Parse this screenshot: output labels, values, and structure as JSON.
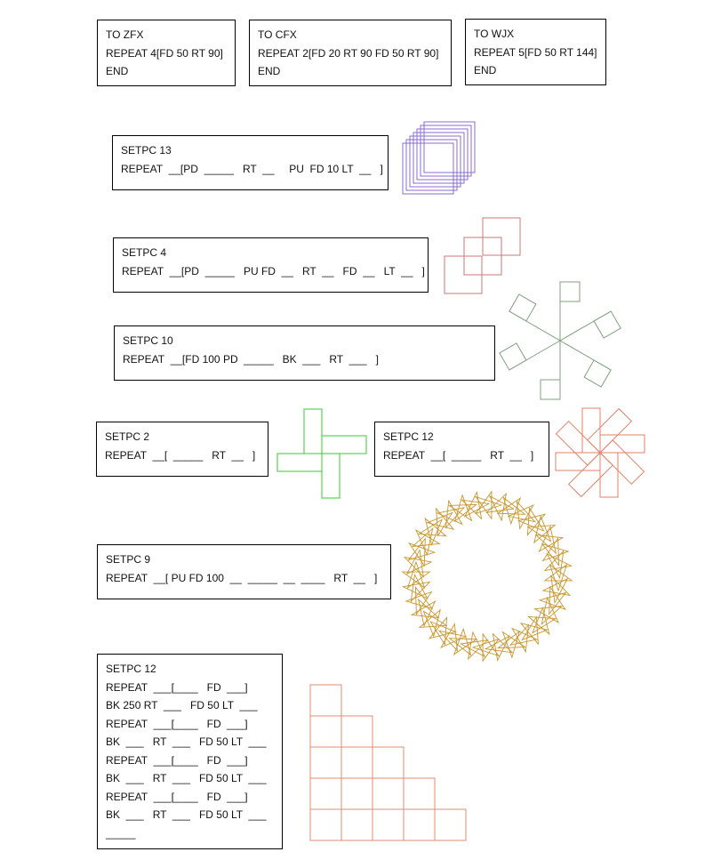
{
  "procedures": [
    {
      "lines": [
        "TO ZFX",
        "REPEAT 4[FD 50 RT 90]",
        "END"
      ]
    },
    {
      "lines": [
        "TO CFX",
        "REPEAT 2[FD 20 RT 90 FD 50 RT 90]",
        "END"
      ]
    },
    {
      "lines": [
        "TO WJX",
        "REPEAT 5[FD 50 RT 144]",
        "END"
      ]
    }
  ],
  "exercises": [
    {
      "lines": [
        "SETPC 13",
        "REPEAT  __[PD  _____   RT  __     PU  FD 10 LT  __   ]"
      ]
    },
    {
      "lines": [
        "SETPC 4",
        "REPEAT  __[PD  _____   PU FD  __   RT  __   FD  __   LT  __   ]"
      ]
    },
    {
      "lines": [
        "SETPC 10",
        "REPEAT  __[FD 100 PD  _____   BK  ___   RT  ___   ]"
      ]
    },
    {
      "lines": [
        "SETPC 2",
        "REPEAT  __[  _____   RT  __   ]"
      ]
    },
    {
      "lines": [
        "SETPC 12",
        "REPEAT  __[  _____   RT  __   ]"
      ]
    },
    {
      "lines": [
        "SETPC 9",
        "REPEAT  __[ PU FD 100  __  _____  __  ____   RT  __   ]"
      ]
    },
    {
      "lines": [
        "SETPC 12",
        "REPEAT  ___[____   FD  ___]",
        "BK 250 RT  ___   FD 50 LT  ___",
        "REPEAT  ___[____   FD  ___]",
        "BK  ___   RT  ___   FD 50 LT  ___",
        "REPEAT  ___[____   FD  ___]",
        "BK  ___   RT  ___   FD 50 LT  ___",
        "REPEAT  ___[____   FD  ___]",
        "BK  ___   RT  ___   FD 50 LT  ___",
        "_____"
      ]
    }
  ],
  "colors": {
    "purple": "#8b6cd0",
    "red": "#c87878",
    "gray_green": "#7f9f80",
    "green": "#33cc33",
    "orange_red": "#e2826a",
    "gold": "#c8962e",
    "salmon": "#e38b72"
  }
}
